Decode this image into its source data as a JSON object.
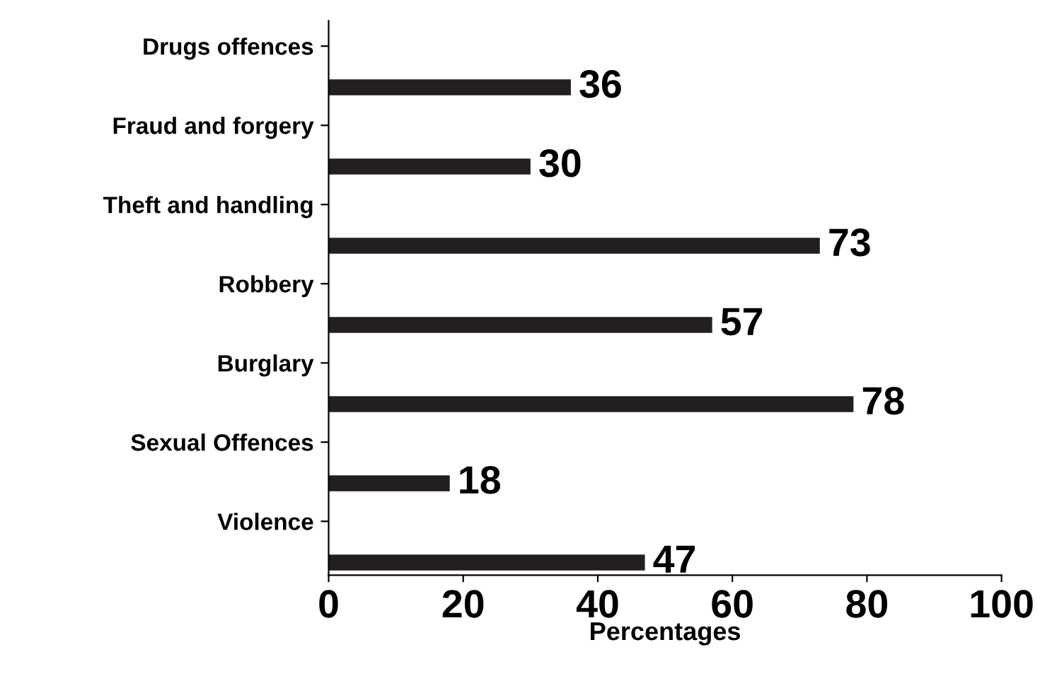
{
  "chart_data": {
    "type": "bar",
    "orientation": "horizontal",
    "xlabel": "Percentages",
    "categories": [
      "Drugs offences",
      "Fraud and forgery",
      "Theft and handling",
      "Robbery",
      "Burglary",
      "Sexual Offences",
      "Violence"
    ],
    "values": [
      36,
      30,
      73,
      57,
      78,
      18,
      47
    ],
    "color": "#231f20",
    "xlim": [
      0,
      100
    ],
    "xticks": [
      0,
      20,
      40,
      60,
      80,
      100
    ],
    "data_labels": true,
    "grid": false,
    "legend": false
  }
}
